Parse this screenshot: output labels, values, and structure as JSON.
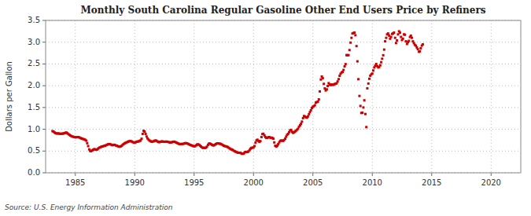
{
  "chart_data": {
    "type": "scatter",
    "title": "Monthly South Carolina Regular Gasoline Other End Users Price by Refiners",
    "ylabel": "Dollars per Gallon",
    "source": "Source: U.S. Energy Information Administration",
    "color": "#cc0000",
    "marker": "square",
    "grid": true,
    "xlim": [
      1982.5,
      2022.5
    ],
    "ylim": [
      0.0,
      3.5
    ],
    "xticks": [
      1985,
      1990,
      1995,
      2000,
      2005,
      2010,
      2015,
      2020
    ],
    "yticks": [
      {
        "value": 0.0,
        "label": "0.0"
      },
      0.5,
      {
        "value": 1.0,
        "label": "1.0"
      },
      1.5,
      {
        "value": 2.0,
        "label": "2.0"
      },
      2.5,
      {
        "value": 3.0,
        "label": "3.0"
      },
      3.5
    ],
    "x": [
      1983.08,
      1983.17,
      1983.25,
      1983.33,
      1983.42,
      1983.5,
      1983.58,
      1983.67,
      1983.75,
      1983.83,
      1983.92,
      1984.0,
      1984.08,
      1984.17,
      1984.25,
      1984.33,
      1984.42,
      1984.5,
      1984.58,
      1984.67,
      1984.75,
      1984.83,
      1984.92,
      1985.0,
      1985.08,
      1985.17,
      1985.25,
      1985.33,
      1985.42,
      1985.5,
      1985.58,
      1985.67,
      1985.75,
      1985.83,
      1985.92,
      1986.0,
      1986.08,
      1986.17,
      1986.25,
      1986.33,
      1986.42,
      1986.5,
      1986.58,
      1986.67,
      1986.75,
      1986.83,
      1986.92,
      1987.0,
      1987.08,
      1987.17,
      1987.25,
      1987.33,
      1987.42,
      1987.5,
      1987.58,
      1987.67,
      1987.75,
      1987.83,
      1987.92,
      1988.0,
      1988.08,
      1988.17,
      1988.25,
      1988.33,
      1988.42,
      1988.5,
      1988.58,
      1988.67,
      1988.75,
      1988.83,
      1988.92,
      1989.0,
      1989.08,
      1989.17,
      1989.25,
      1989.33,
      1989.42,
      1989.5,
      1989.58,
      1989.67,
      1989.75,
      1989.83,
      1989.92,
      1990.0,
      1990.08,
      1990.17,
      1990.25,
      1990.33,
      1990.42,
      1990.5,
      1990.58,
      1990.67,
      1990.75,
      1990.83,
      1990.92,
      1991.0,
      1991.08,
      1991.17,
      1991.25,
      1991.33,
      1991.42,
      1991.5,
      1991.58,
      1991.67,
      1991.75,
      1991.83,
      1991.92,
      1992.0,
      1992.08,
      1992.17,
      1992.25,
      1992.33,
      1992.42,
      1992.5,
      1992.58,
      1992.67,
      1992.75,
      1992.83,
      1992.92,
      1993.0,
      1993.08,
      1993.17,
      1993.25,
      1993.33,
      1993.42,
      1993.5,
      1993.58,
      1993.67,
      1993.75,
      1993.83,
      1993.92,
      1994.0,
      1994.08,
      1994.17,
      1994.25,
      1994.33,
      1994.42,
      1994.5,
      1994.58,
      1994.67,
      1994.75,
      1994.83,
      1994.92,
      1995.0,
      1995.08,
      1995.17,
      1995.25,
      1995.33,
      1995.42,
      1995.5,
      1995.58,
      1995.67,
      1995.75,
      1995.83,
      1995.92,
      1996.0,
      1996.08,
      1996.17,
      1996.25,
      1996.33,
      1996.42,
      1996.5,
      1996.58,
      1996.67,
      1996.75,
      1996.83,
      1996.92,
      1997.0,
      1997.08,
      1997.17,
      1997.25,
      1997.33,
      1997.42,
      1997.5,
      1997.58,
      1997.67,
      1997.75,
      1997.83,
      1997.92,
      1998.0,
      1998.08,
      1998.17,
      1998.25,
      1998.33,
      1998.42,
      1998.5,
      1998.58,
      1998.67,
      1998.75,
      1998.83,
      1998.92,
      1999.0,
      1999.08,
      1999.17,
      1999.25,
      1999.33,
      1999.42,
      1999.5,
      1999.58,
      1999.67,
      1999.75,
      1999.83,
      1999.92,
      2000.0,
      2000.08,
      2000.17,
      2000.25,
      2000.33,
      2000.42,
      2000.5,
      2000.58,
      2000.67,
      2000.75,
      2000.83,
      2000.92,
      2001.0,
      2001.08,
      2001.17,
      2001.25,
      2001.33,
      2001.42,
      2001.5,
      2001.58,
      2001.67,
      2001.75,
      2001.83,
      2001.92,
      2002.0,
      2002.08,
      2002.17,
      2002.25,
      2002.33,
      2002.42,
      2002.5,
      2002.58,
      2002.67,
      2002.75,
      2002.83,
      2002.92,
      2003.0,
      2003.08,
      2003.17,
      2003.25,
      2003.33,
      2003.42,
      2003.5,
      2003.58,
      2003.67,
      2003.75,
      2003.83,
      2003.92,
      2004.0,
      2004.08,
      2004.17,
      2004.25,
      2004.33,
      2004.42,
      2004.5,
      2004.58,
      2004.67,
      2004.75,
      2004.83,
      2004.92,
      2005.0,
      2005.08,
      2005.17,
      2005.25,
      2005.33,
      2005.42,
      2005.5,
      2005.58,
      2005.67,
      2005.75,
      2005.83,
      2005.92,
      2006.0,
      2006.08,
      2006.17,
      2006.25,
      2006.33,
      2006.42,
      2006.5,
      2006.58,
      2006.67,
      2006.75,
      2006.83,
      2006.92,
      2007.0,
      2007.08,
      2007.17,
      2007.25,
      2007.33,
      2007.42,
      2007.5,
      2007.58,
      2007.67,
      2007.75,
      2007.83,
      2007.92,
      2008.0,
      2008.08,
      2008.17,
      2008.25,
      2008.33,
      2008.42,
      2008.5,
      2008.58,
      2008.67,
      2008.75,
      2008.83,
      2008.92,
      2009.0,
      2009.08,
      2009.17,
      2009.25,
      2009.33,
      2009.42,
      2009.5,
      2009.58,
      2009.67,
      2009.75,
      2009.83,
      2009.92,
      2010.0,
      2010.08,
      2010.17,
      2010.25,
      2010.33,
      2010.42,
      2010.5,
      2010.58,
      2010.67,
      2010.75,
      2010.83,
      2010.92,
      2011.0,
      2011.08,
      2011.17,
      2011.25,
      2011.33,
      2011.42,
      2011.5,
      2011.58,
      2011.67,
      2011.75,
      2011.83,
      2011.92,
      2012.0,
      2012.08,
      2012.17,
      2012.25,
      2012.33,
      2012.42,
      2012.5,
      2012.58,
      2012.67,
      2012.75,
      2012.83,
      2012.92,
      2013.0,
      2013.08,
      2013.17,
      2013.25,
      2013.33,
      2013.42,
      2013.5,
      2013.58,
      2013.67,
      2013.75,
      2013.83,
      2013.92,
      2014.0,
      2014.08,
      2014.17,
      2014.25
    ],
    "values": [
      0.957,
      0.946,
      0.925,
      0.913,
      0.902,
      0.904,
      0.905,
      0.897,
      0.896,
      0.898,
      0.899,
      0.902,
      0.911,
      0.921,
      0.924,
      0.908,
      0.888,
      0.873,
      0.856,
      0.843,
      0.833,
      0.828,
      0.82,
      0.816,
      0.817,
      0.819,
      0.82,
      0.813,
      0.801,
      0.79,
      0.783,
      0.775,
      0.768,
      0.757,
      0.738,
      0.68,
      0.614,
      0.538,
      0.503,
      0.497,
      0.516,
      0.528,
      0.542,
      0.539,
      0.529,
      0.534,
      0.555,
      0.574,
      0.584,
      0.596,
      0.603,
      0.61,
      0.617,
      0.622,
      0.633,
      0.644,
      0.654,
      0.66,
      0.659,
      0.648,
      0.636,
      0.636,
      0.644,
      0.641,
      0.627,
      0.621,
      0.611,
      0.6,
      0.601,
      0.607,
      0.625,
      0.648,
      0.663,
      0.68,
      0.69,
      0.701,
      0.711,
      0.722,
      0.728,
      0.727,
      0.718,
      0.707,
      0.696,
      0.69,
      0.702,
      0.715,
      0.719,
      0.72,
      0.735,
      0.743,
      0.782,
      0.894,
      0.964,
      0.947,
      0.893,
      0.834,
      0.79,
      0.76,
      0.74,
      0.726,
      0.717,
      0.716,
      0.723,
      0.736,
      0.741,
      0.737,
      0.72,
      0.707,
      0.705,
      0.712,
      0.72,
      0.72,
      0.715,
      0.712,
      0.715,
      0.717,
      0.712,
      0.708,
      0.7,
      0.697,
      0.7,
      0.705,
      0.714,
      0.715,
      0.705,
      0.695,
      0.683,
      0.672,
      0.662,
      0.661,
      0.661,
      0.663,
      0.665,
      0.672,
      0.68,
      0.681,
      0.674,
      0.664,
      0.653,
      0.641,
      0.633,
      0.625,
      0.615,
      0.609,
      0.612,
      0.63,
      0.649,
      0.653,
      0.644,
      0.625,
      0.603,
      0.583,
      0.572,
      0.574,
      0.572,
      0.578,
      0.601,
      0.641,
      0.67,
      0.673,
      0.66,
      0.643,
      0.631,
      0.631,
      0.645,
      0.66,
      0.673,
      0.678,
      0.671,
      0.668,
      0.663,
      0.65,
      0.635,
      0.622,
      0.612,
      0.608,
      0.601,
      0.591,
      0.575,
      0.558,
      0.543,
      0.536,
      0.525,
      0.509,
      0.494,
      0.484,
      0.475,
      0.463,
      0.46,
      0.461,
      0.456,
      0.44,
      0.437,
      0.442,
      0.466,
      0.48,
      0.48,
      0.479,
      0.492,
      0.524,
      0.555,
      0.572,
      0.578,
      0.581,
      0.615,
      0.693,
      0.744,
      0.76,
      0.732,
      0.709,
      0.728,
      0.82,
      0.89,
      0.897,
      0.859,
      0.82,
      0.801,
      0.804,
      0.817,
      0.821,
      0.808,
      0.799,
      0.806,
      0.783,
      0.698,
      0.62,
      0.601,
      0.624,
      0.66,
      0.701,
      0.734,
      0.741,
      0.739,
      0.734,
      0.753,
      0.784,
      0.831,
      0.873,
      0.895,
      0.934,
      0.974,
      0.986,
      0.942,
      0.917,
      0.93,
      0.949,
      0.968,
      0.991,
      1.012,
      1.058,
      1.091,
      1.127,
      1.176,
      1.255,
      1.303,
      1.293,
      1.274,
      1.266,
      1.295,
      1.346,
      1.393,
      1.435,
      1.489,
      1.517,
      1.531,
      1.552,
      1.612,
      1.624,
      1.634,
      1.686,
      1.869,
      2.143,
      2.211,
      2.173,
      2.043,
      1.938,
      1.891,
      1.916,
      1.994,
      2.059,
      2.027,
      2.015,
      2.028,
      2.022,
      2.022,
      2.039,
      2.046,
      2.056,
      2.098,
      2.151,
      2.227,
      2.274,
      2.305,
      2.317,
      2.363,
      2.444,
      2.496,
      2.703,
      2.7,
      2.703,
      2.819,
      2.99,
      3.1,
      3.2,
      3.21,
      3.22,
      3.16,
      2.91,
      2.56,
      2.15,
      1.765,
      1.535,
      1.375,
      1.38,
      1.5,
      1.665,
      1.35,
      1.05,
      1.94,
      2.05,
      2.16,
      2.23,
      2.26,
      2.28,
      2.35,
      2.42,
      2.46,
      2.5,
      2.45,
      2.42,
      2.43,
      2.47,
      2.54,
      2.62,
      2.7,
      2.83,
      3.02,
      3.1,
      3.18,
      3.2,
      3.15,
      3.08,
      3.12,
      3.19,
      3.2,
      3.22,
      3.1,
      2.98,
      3.04,
      3.18,
      3.25,
      3.22,
      3.12,
      3.05,
      3.08,
      3.18,
      3.17,
      3.02,
      2.96,
      3.0,
      3.03,
      3.12,
      3.15,
      3.1,
      3.02,
      2.98,
      2.94,
      2.92,
      2.88,
      2.84,
      2.78,
      2.79,
      2.86,
      2.92,
      2.95
    ]
  }
}
